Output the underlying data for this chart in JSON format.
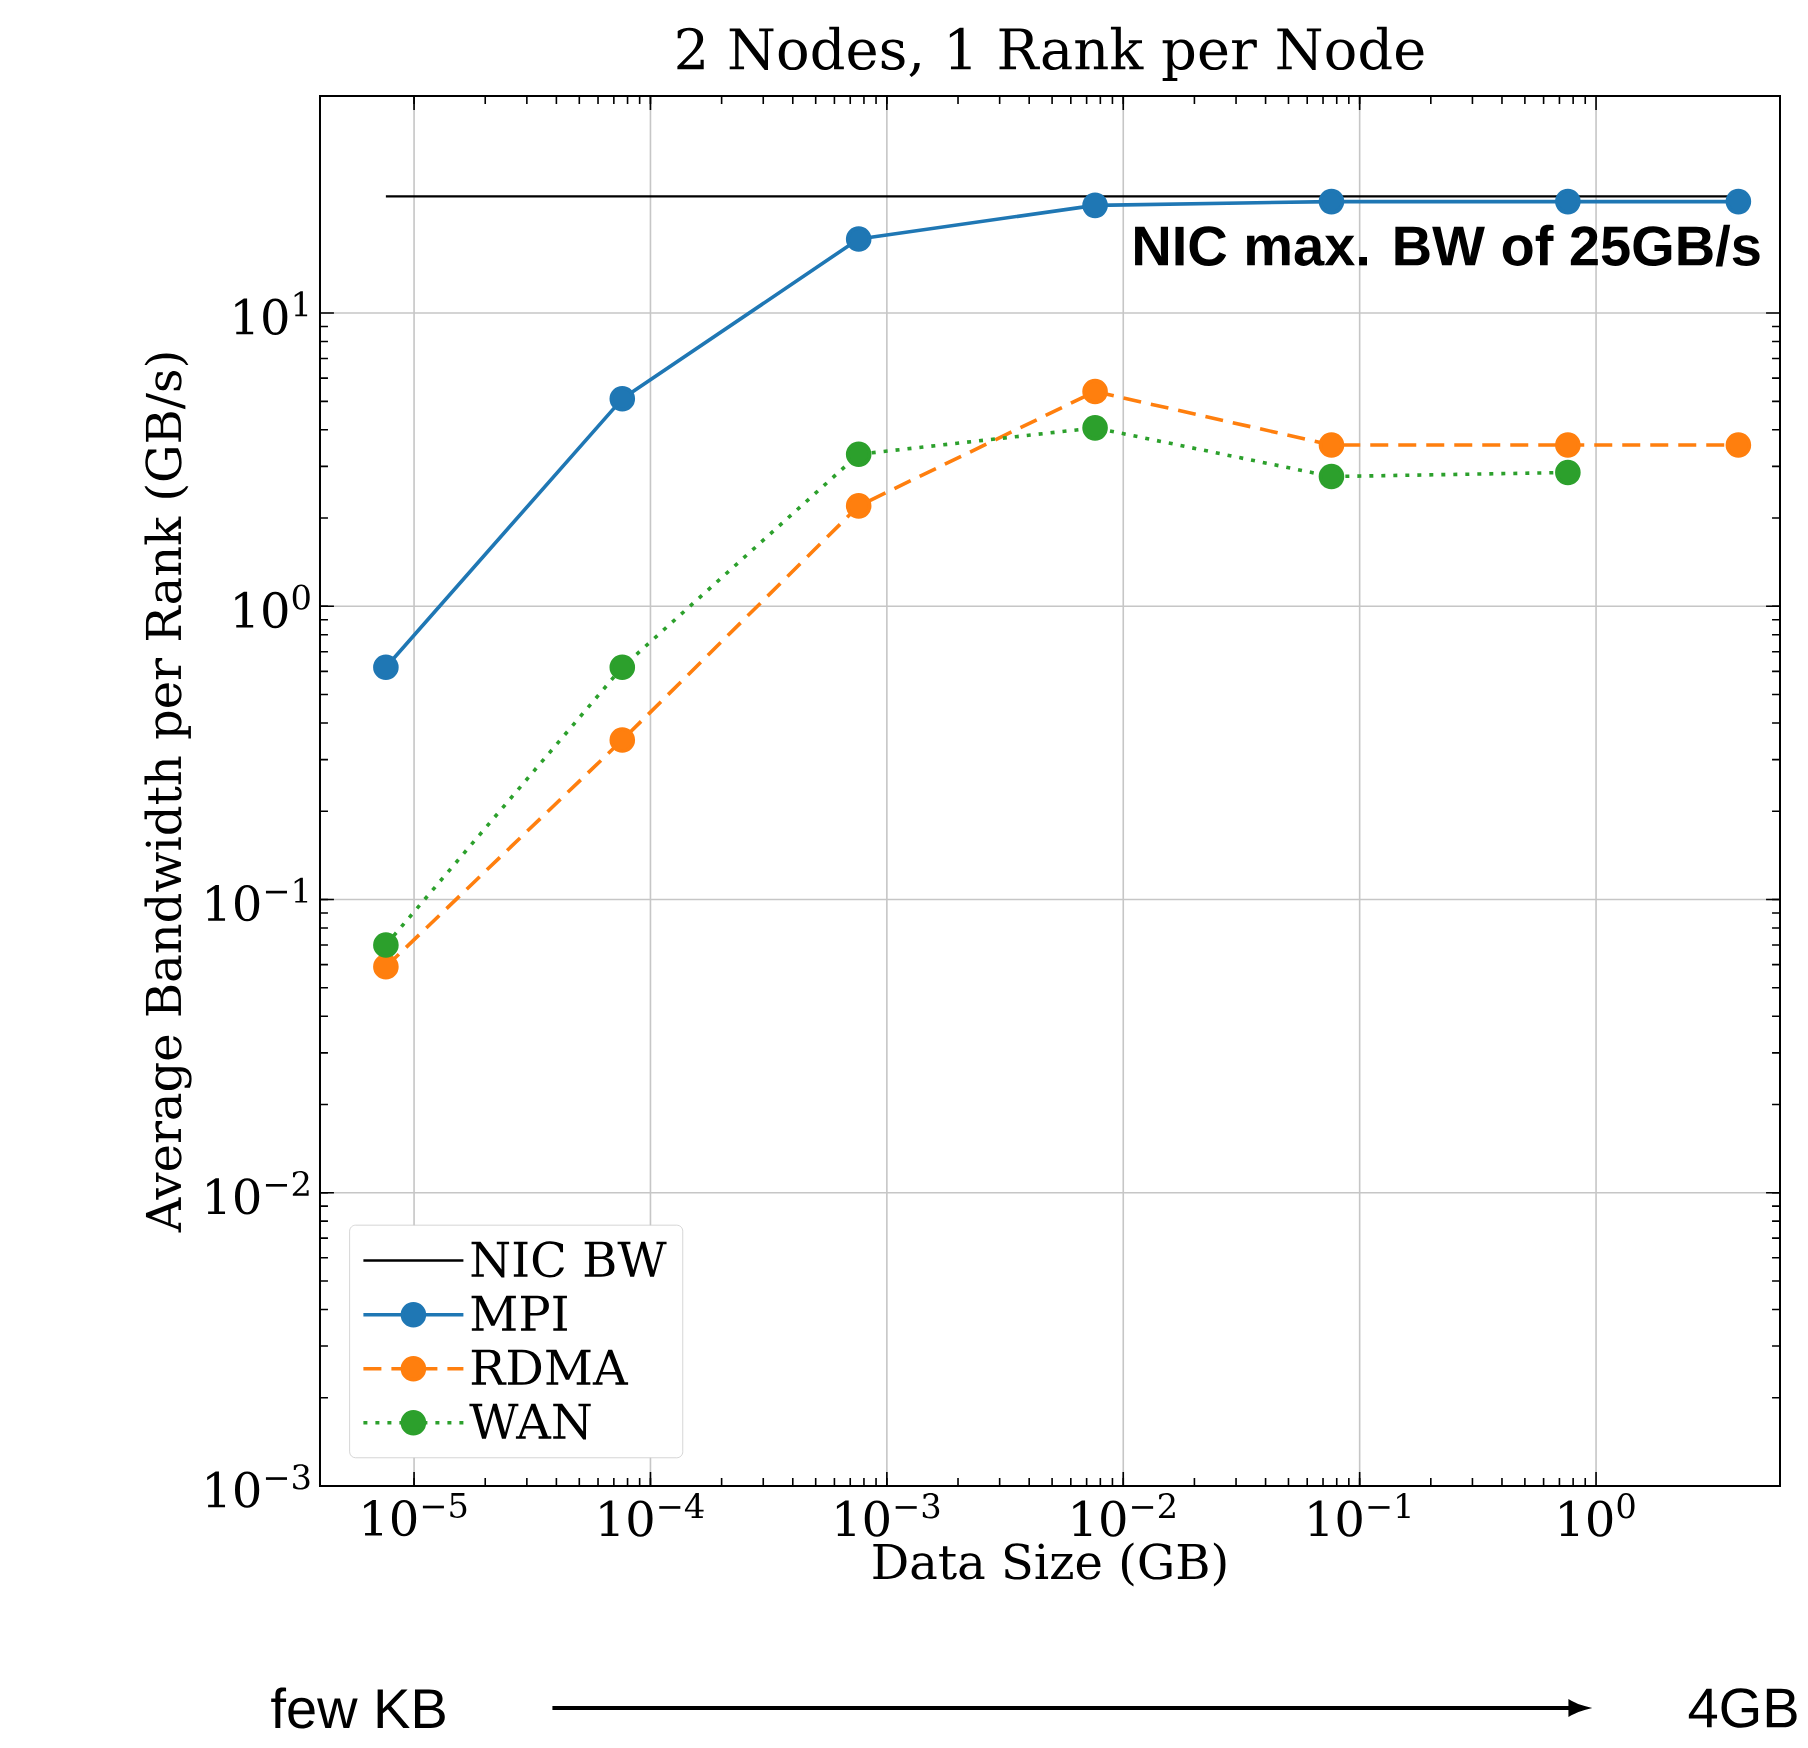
{
  "chart_data": {
    "type": "line",
    "title": "2 Nodes, 1 Rank per Node",
    "xlabel": "Data Size (GB)",
    "ylabel": "Average Bandwidth per Rank (GB/s)",
    "log": "xy",
    "grid": true,
    "legend": "bottom left",
    "marker": "circle",
    "line_style": "solid",
    "x": [
      7.6e-06,
      7.6e-05,
      0.00076,
      0.0076,
      0.076,
      0.76,
      4
    ],
    "series": [
      {
        "name": "NIC BW",
        "color": "#000000",
        "marker": "none",
        "x": [
          7.6e-06,
          4
        ],
        "values": [
          25,
          25
        ]
      },
      {
        "name": "MPI",
        "color": "#1f77b4",
        "values": [
          0.62,
          5.1,
          17.9,
          23.3,
          24,
          24,
          24
        ]
      },
      {
        "name": "RDMA",
        "color": "#ff7f0e",
        "line_style": "dashed",
        "values": [
          0.059,
          0.35,
          2.2,
          5.4,
          3.55,
          3.55,
          3.55
        ]
      },
      {
        "name": "WAN",
        "color": "#2ca02c",
        "line_style": "dotted",
        "values": [
          0.07,
          0.62,
          3.3,
          4.06,
          2.77,
          2.86,
          null
        ]
      }
    ],
    "xlim": [
      4e-06,
      6
    ],
    "ylim": [
      0.001,
      55
    ],
    "xticks": [
      {
        "value": 1e-05,
        "label": "10$^{−5}$"
      },
      {
        "value": 0.0001,
        "label": "10$^{−4}$"
      },
      {
        "value": 0.001,
        "label": "10$^{−3}$"
      },
      {
        "value": 0.01,
        "label": "10$^{−2}$"
      },
      {
        "value": 0.1,
        "label": "10$^{−1}$"
      },
      {
        "value": 1,
        "label": "10$^{0}$"
      }
    ],
    "yticks": [
      {
        "value": 0.001,
        "label": "10$^{−3}$"
      },
      {
        "value": 0.01,
        "label": "10$^{−2}$"
      },
      {
        "value": 0.1,
        "label": "10$^{−1}$"
      },
      {
        "value": 1,
        "label": "10$^{0}$"
      },
      {
        "value": 10,
        "label": "10$^{1}$"
      }
    ],
    "annotations": [
      {
        "text": "NIC max. BW of 25GB/s",
        "x": 4,
        "y": 25
      },
      "few KB",
      "4GB"
    ]
  }
}
